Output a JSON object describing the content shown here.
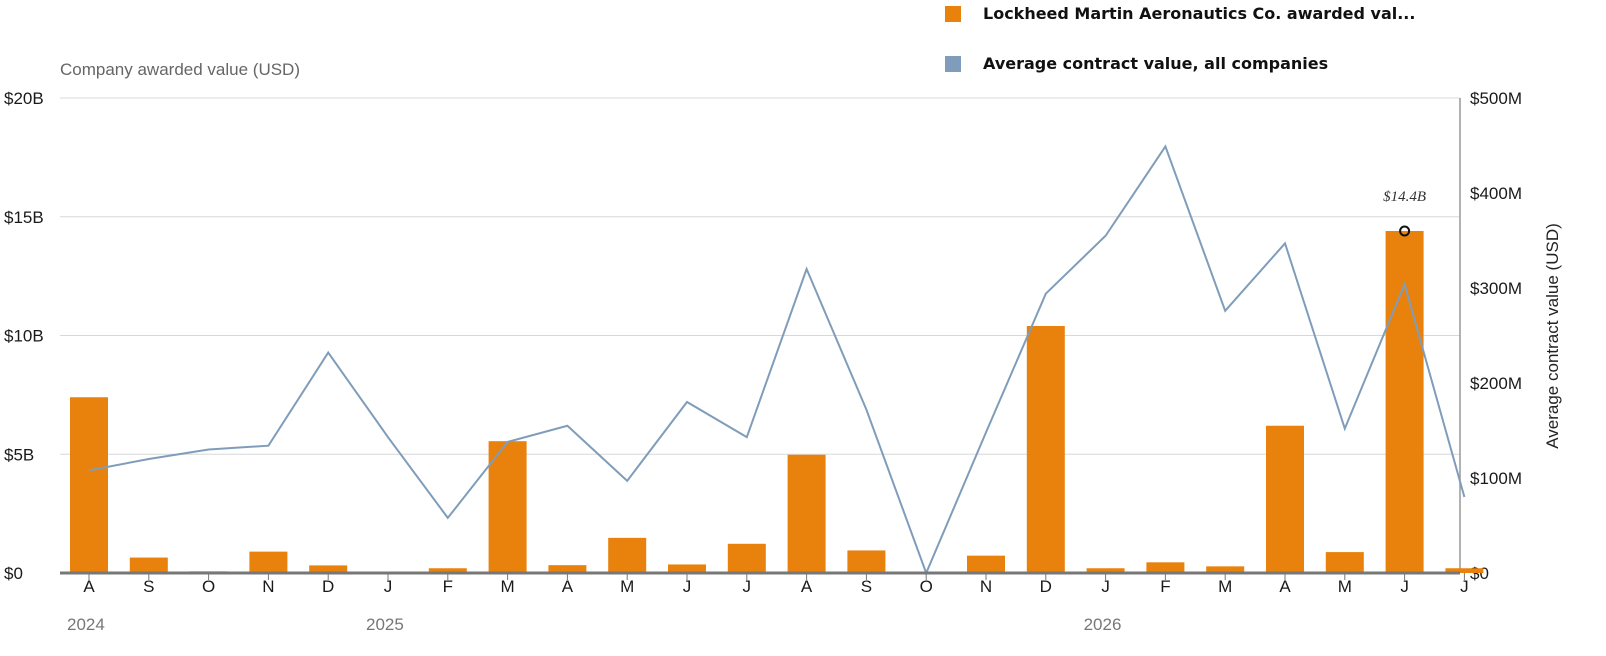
{
  "chart_data": {
    "type": "bar",
    "categories": [
      "A",
      "S",
      "O",
      "N",
      "D",
      "J",
      "F",
      "M",
      "A",
      "M",
      "J",
      "J",
      "A",
      "S",
      "O",
      "N",
      "D",
      "J",
      "F",
      "M",
      "A",
      "M",
      "J",
      "J"
    ],
    "years": [
      {
        "label": "2024",
        "start_index": 0
      },
      {
        "label": "2025",
        "start_index": 5
      },
      {
        "label": "2026",
        "start_index": 17
      }
    ],
    "series": [
      {
        "name": "Lockheed Martin Aeronautics Co. awarded val...",
        "type": "bar",
        "axis": "left",
        "color": "#E8820C",
        "values": [
          7.4,
          0.65,
          0.07,
          0.9,
          0.32,
          0,
          0.2,
          5.55,
          0.33,
          1.48,
          0.36,
          1.23,
          4.98,
          0.95,
          0,
          0.73,
          10.4,
          0.2,
          0.45,
          0.28,
          6.2,
          0.88,
          14.4,
          0.2
        ]
      },
      {
        "name": "Average contract value, all companies",
        "type": "line",
        "axis": "right",
        "color": "#7F9DBA",
        "values": [
          108,
          120,
          130,
          134,
          232,
          143,
          58,
          138,
          155,
          97,
          180,
          143,
          320,
          172,
          0,
          148,
          294,
          355,
          449,
          276,
          347,
          152,
          304,
          80
        ]
      }
    ],
    "ylabel_left": "Company awarded value (USD)",
    "ylabel_right": "Average contract value (USD)",
    "ylim_left": [
      0,
      20
    ],
    "ylim_right": [
      0,
      500
    ],
    "yticks_left": [
      "$0",
      "$5B",
      "$10B",
      "$15B",
      "$20B"
    ],
    "yticks_right": [
      "$0",
      "$100M",
      "$200M",
      "$300M",
      "$400M",
      "$500M"
    ],
    "annotation": {
      "index": 22,
      "text": "$14.4B"
    },
    "grid": true,
    "legend_position": "top-right"
  }
}
